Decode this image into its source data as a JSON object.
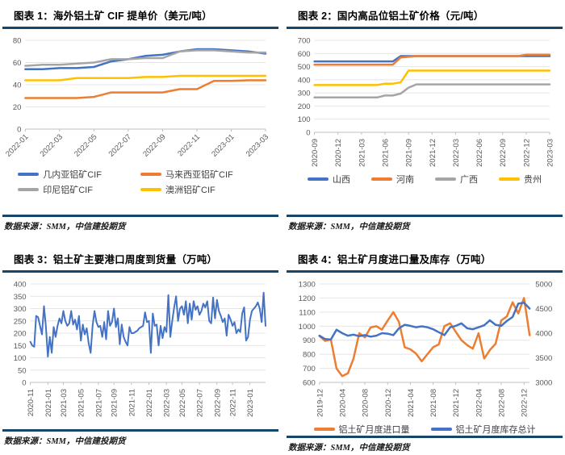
{
  "colors": {
    "accent_navy": "#17466B",
    "line_blue": "#4472C4",
    "line_orange": "#ED7D31",
    "line_gray": "#A5A5A5",
    "line_yellow": "#FFC000",
    "gridline": "#E4E4E4",
    "axis": "#BFBFBF",
    "tick_text": "#595959"
  },
  "chart_data": [
    {
      "id": "figure-1",
      "type": "line",
      "title": "图表 1：海外铝土矿 CIF 提单价（美元/吨）",
      "source": "数据来源：SMM，中信建投期货",
      "ylabel": "",
      "ylim": [
        0,
        80
      ],
      "ystep": 20,
      "grid": true,
      "legend_position": "bottom",
      "show_legend": true,
      "x_label_rotation": 45,
      "line_width": 2.5,
      "x_tick_labels": [
        "2022-01",
        "2022-03",
        "2022-05",
        "2022-07",
        "2022-09",
        "2022-11",
        "2023-01",
        "2023-03"
      ],
      "x_tick_indices": [
        0,
        2,
        4,
        6,
        8,
        10,
        12,
        14
      ],
      "series": [
        {
          "name": "几内亚铝矿CIF",
          "color": "#4472C4",
          "values": [
            54,
            54,
            55,
            55,
            56,
            61,
            63,
            66,
            67,
            70,
            72,
            72,
            71,
            70,
            68
          ]
        },
        {
          "name": "马来西亚铝矿CIF",
          "color": "#ED7D31",
          "values": [
            28,
            28,
            28,
            28,
            29,
            33,
            33,
            33,
            33,
            36,
            36,
            43.5,
            43.5,
            44,
            44
          ]
        },
        {
          "name": "印尼铝矿CIF",
          "color": "#A5A5A5",
          "values": [
            57,
            58,
            58,
            59,
            60,
            63,
            63,
            64,
            64,
            70,
            71,
            71,
            70,
            69,
            69
          ]
        },
        {
          "name": "澳洲铝矿CIF",
          "color": "#FFC000",
          "values": [
            44,
            44,
            44,
            46,
            46,
            46,
            46,
            47,
            47,
            48,
            48,
            48,
            48,
            48,
            48
          ]
        }
      ]
    },
    {
      "id": "figure-2",
      "type": "line",
      "title": "图表 2：国内高品位铝土矿价格（元/吨）",
      "source": "数据来源：SMM，中信建投期货",
      "ylabel": "",
      "ylim": [
        0,
        700
      ],
      "ystep": 100,
      "grid": true,
      "legend_position": "bottom",
      "show_legend": true,
      "x_label_rotation": 90,
      "line_width": 2.5,
      "x_tick_labels": [
        "2020-09",
        "2020-12",
        "2021-03",
        "2021-06",
        "2021-09",
        "2021-12",
        "2022-03",
        "2022-06",
        "2022-09",
        "2022-12",
        "2023-03"
      ],
      "x_tick_indices": [
        0,
        3,
        6,
        9,
        12,
        15,
        18,
        21,
        24,
        27,
        30
      ],
      "series": [
        {
          "name": "山西",
          "color": "#4472C4",
          "values": [
            540,
            540,
            540,
            540,
            540,
            540,
            540,
            540,
            540,
            540,
            540,
            580,
            580,
            580,
            580,
            580,
            580,
            580,
            580,
            580,
            580,
            580,
            580,
            580,
            580,
            580,
            580,
            580,
            580,
            580,
            580
          ]
        },
        {
          "name": "河南",
          "color": "#ED7D31",
          "values": [
            515,
            515,
            515,
            515,
            515,
            515,
            515,
            515,
            515,
            515,
            515,
            570,
            575,
            580,
            580,
            580,
            580,
            580,
            580,
            580,
            580,
            580,
            580,
            580,
            580,
            580,
            580,
            590,
            590,
            590,
            590
          ]
        },
        {
          "name": "广西",
          "color": "#A5A5A5",
          "values": [
            265,
            265,
            265,
            265,
            265,
            265,
            265,
            265,
            265,
            280,
            280,
            295,
            340,
            365,
            365,
            365,
            365,
            365,
            365,
            365,
            365,
            365,
            365,
            365,
            365,
            365,
            365,
            365,
            365,
            365,
            365
          ]
        },
        {
          "name": "贵州",
          "color": "#FFC000",
          "values": [
            360,
            360,
            360,
            360,
            360,
            360,
            360,
            360,
            360,
            370,
            370,
            380,
            470,
            470,
            470,
            470,
            470,
            470,
            470,
            470,
            470,
            470,
            470,
            470,
            470,
            470,
            470,
            470,
            470,
            470,
            470
          ]
        }
      ]
    },
    {
      "id": "figure-3",
      "type": "line",
      "title": "图表 3：铝土矿主要港口周度到货量（万吨）",
      "source": "数据来源：SMM，中信建投期货",
      "ylabel": "",
      "ylim": [
        0,
        400
      ],
      "ystep": 50,
      "grid": true,
      "legend_position": "none",
      "show_legend": false,
      "x_label_rotation": 90,
      "line_width": 2,
      "x_tick_labels": [
        "2020-11",
        "2021-01",
        "2021-03",
        "2021-05",
        "2021-07",
        "2021-09",
        "2021-11",
        "2022-01",
        "2022-03",
        "2022-05",
        "2022-07",
        "2022-09",
        "2022-11",
        "2023-01"
      ],
      "x_tick_indices": [
        0,
        9,
        17,
        26,
        35,
        43,
        52,
        61,
        70,
        78,
        87,
        96,
        104,
        113
      ],
      "series": [
        {
          "name": "铝土矿主要港口周度到货量",
          "color": "#4472C4",
          "values": [
            165,
            150,
            145,
            270,
            265,
            230,
            195,
            310,
            225,
            105,
            185,
            120,
            225,
            185,
            230,
            260,
            240,
            290,
            250,
            230,
            240,
            290,
            235,
            255,
            215,
            270,
            170,
            235,
            195,
            220,
            160,
            120,
            230,
            290,
            245,
            225,
            230,
            185,
            245,
            175,
            290,
            230,
            245,
            300,
            225,
            260,
            155,
            235,
            185,
            165,
            150,
            225,
            200,
            200,
            205,
            210,
            220,
            225,
            230,
            285,
            245,
            250,
            120,
            280,
            230,
            235,
            150,
            230,
            180,
            225,
            205,
            355,
            185,
            250,
            305,
            350,
            250,
            300,
            310,
            275,
            330,
            240,
            320,
            255,
            330,
            295,
            310,
            275,
            290,
            320,
            305,
            330,
            250,
            240,
            345,
            260,
            335,
            290,
            270,
            245,
            260,
            190,
            275,
            255,
            230,
            245,
            200,
            215,
            205,
            280,
            305,
            170,
            185,
            255,
            290,
            300,
            310,
            325,
            300,
            245,
            365,
            230
          ]
        }
      ]
    },
    {
      "id": "figure-4",
      "type": "line",
      "title": "图表 4：铝土矿月度进口量及库存（万吨）",
      "source": "数据来源：SMM，中信建投期货",
      "ylabel": "",
      "ylim": [
        600,
        1300
      ],
      "ystep": 100,
      "y2lim": [
        3000,
        5000
      ],
      "y2step": 500,
      "grid": true,
      "legend_position": "bottom",
      "show_legend": true,
      "x_label_rotation": 90,
      "line_width": 2.5,
      "x_tick_labels": [
        "2019-12",
        "2020-04",
        "2020-08",
        "2020-12",
        "2021-04",
        "2021-08",
        "2021-12",
        "2022-04",
        "2022-08",
        "2022-12"
      ],
      "x_tick_indices": [
        0,
        4,
        8,
        12,
        16,
        20,
        24,
        28,
        32,
        36
      ],
      "series": [
        {
          "name": "铝土矿月度进口量",
          "color": "#ED7D31",
          "axis": "left",
          "values": [
            930,
            895,
            905,
            700,
            645,
            665,
            770,
            950,
            920,
            990,
            1000,
            975,
            1040,
            1100,
            1030,
            850,
            835,
            805,
            750,
            800,
            850,
            870,
            1000,
            1020,
            960,
            900,
            865,
            840,
            950,
            770,
            830,
            875,
            1040,
            1070,
            1170,
            1090,
            1200,
            935
          ]
        },
        {
          "name": "铝土矿月度库存总计",
          "color": "#4472C4",
          "axis": "right",
          "values": [
            3950,
            3880,
            3870,
            4070,
            4000,
            3950,
            3970,
            3940,
            3960,
            3930,
            3950,
            4000,
            3990,
            3960,
            4100,
            4170,
            4150,
            4120,
            4140,
            4120,
            4080,
            4020,
            3960,
            4120,
            4150,
            4200,
            4100,
            4080,
            4120,
            4160,
            4260,
            4170,
            4150,
            4250,
            4330,
            4600,
            4620,
            4500
          ]
        }
      ]
    }
  ]
}
